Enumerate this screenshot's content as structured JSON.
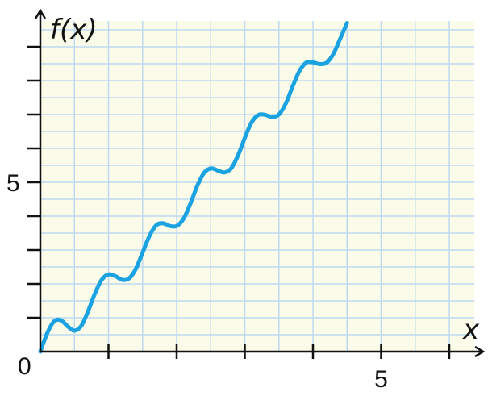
{
  "chart_data": {
    "type": "line",
    "ylabel": "f(x)",
    "xlabel": "x",
    "xlim": [
      0,
      6.5
    ],
    "ylim": [
      0,
      9.5
    ],
    "x_tick_step": 1,
    "y_tick_step": 1,
    "x_tick_labels": [
      {
        "value": 5,
        "label": "5"
      }
    ],
    "y_tick_labels": [
      {
        "value": 5,
        "label": "5"
      }
    ],
    "origin_label": "0",
    "grid": true,
    "background_color": "#fbfbea",
    "grid_color": "#bcd9ef",
    "curve_color": "#1aa3e0",
    "series": [
      {
        "x": [
          0,
          0.1,
          0.2,
          0.3,
          0.4,
          0.5,
          0.6,
          0.7,
          0.8,
          0.9,
          1.0,
          1.1,
          1.2,
          1.3,
          1.4,
          1.5,
          1.6,
          1.7,
          1.8,
          1.9,
          2.0,
          2.1,
          2.2,
          2.3,
          2.4,
          2.5,
          2.6,
          2.7,
          2.8,
          2.9,
          3.0,
          3.1,
          3.2,
          3.3,
          3.4,
          3.5,
          3.6,
          3.7,
          3.8,
          3.9,
          4.0,
          4.1,
          4.2,
          4.3,
          4.4,
          4.5
        ],
        "y": [
          0,
          0.54,
          0.89,
          0.93,
          0.75,
          0.62,
          0.76,
          1.19,
          1.71,
          2.12,
          2.28,
          2.23,
          2.12,
          2.16,
          2.44,
          2.92,
          3.41,
          3.73,
          3.79,
          3.71,
          3.71,
          3.92,
          4.36,
          4.88,
          5.27,
          5.41,
          5.35,
          5.29,
          5.41,
          5.79,
          6.31,
          6.77,
          6.99,
          6.99,
          6.93,
          7.0,
          7.32,
          7.82,
          8.28,
          8.53,
          8.54,
          8.49,
          8.53,
          8.79,
          9.24,
          9.7
        ]
      }
    ]
  }
}
